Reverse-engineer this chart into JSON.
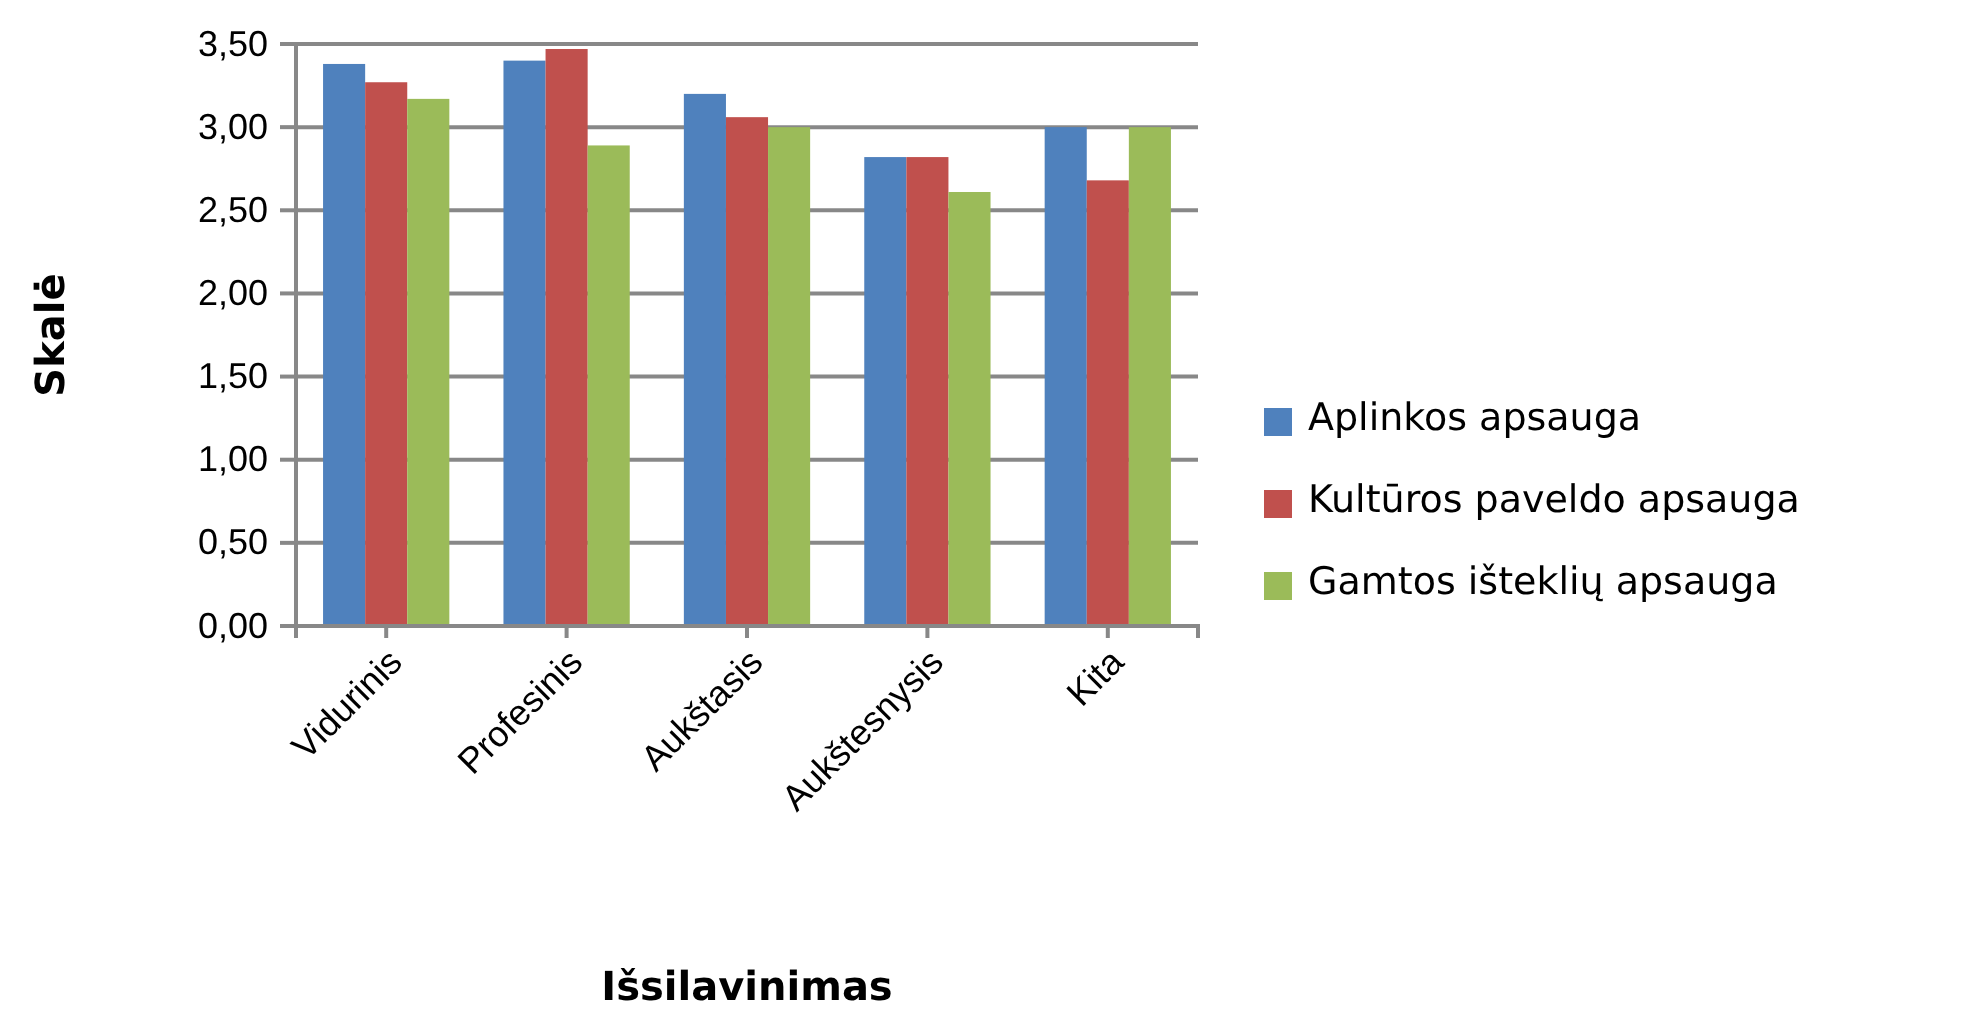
{
  "chart_data": {
    "type": "bar",
    "xlabel": "Išsilavinimas",
    "ylabel": "Skalė",
    "categories": [
      "Vidurinis",
      "Profesinis",
      "Aukštasis",
      "Aukštesnysis",
      "Kita"
    ],
    "series": [
      {
        "name": "Aplinkos apsauga",
        "color": "#4f81bd",
        "values": [
          3.38,
          3.4,
          3.2,
          2.82,
          3.0
        ]
      },
      {
        "name": "Kultūros paveldo apsauga",
        "color": "#c0504d",
        "values": [
          3.27,
          3.47,
          3.06,
          2.82,
          2.68
        ]
      },
      {
        "name": "Gamtos išteklių apsauga",
        "color": "#9bbb59",
        "values": [
          3.17,
          2.89,
          3.0,
          2.61,
          3.0
        ]
      }
    ],
    "ylim": [
      0,
      3.5
    ],
    "yticks": [
      {
        "value": 0,
        "label": "0,00"
      },
      {
        "value": 0.5,
        "label": "0,50"
      },
      {
        "value": 1,
        "label": "1,00"
      },
      {
        "value": 1.5,
        "label": "1,50"
      },
      {
        "value": 2,
        "label": "2,00"
      },
      {
        "value": 2.5,
        "label": "2,50"
      },
      {
        "value": 3,
        "label": "3,00"
      },
      {
        "value": 3.5,
        "label": "3,50"
      }
    ],
    "grid": "y",
    "legend": "right"
  }
}
